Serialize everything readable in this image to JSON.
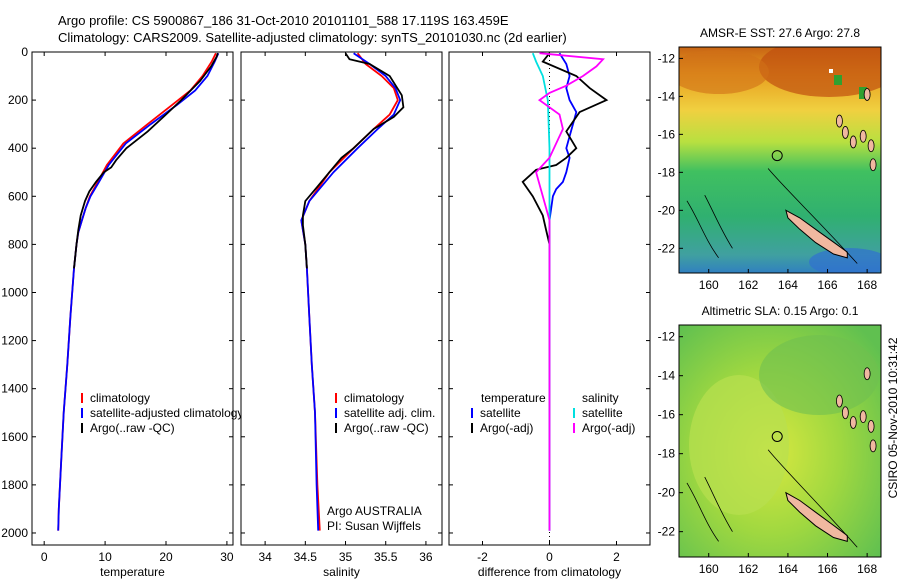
{
  "header": {
    "title_line1": "Argo profile: CS 5900867_186 31-Oct-2010 20101101_588 17.119S 163.459E",
    "title_line2": "Climatology: CARS2009. Satellite-adjusted climatology: synTS_20101030.nc (2d earlier)",
    "credit": "CSIRO 05-Nov-2010 10:31:42"
  },
  "colors": {
    "climatology": "#ff0000",
    "satellite": "#0000ff",
    "argo": "#000000",
    "salinity_satellite": "#00e0e0",
    "salinity_argo": "#ff00ff",
    "land": "#f0b8a0"
  },
  "chart_data": [
    {
      "id": "temperature",
      "type": "line",
      "xlabel": "temperature",
      "ylabel": "",
      "xlim": [
        -2,
        31
      ],
      "ylim": [
        2050,
        0
      ],
      "xticks": [
        0,
        10,
        20,
        30
      ],
      "yticks": [
        0,
        200,
        400,
        600,
        800,
        1000,
        1200,
        1400,
        1600,
        1800,
        2000
      ],
      "series": [
        {
          "name": "climatology",
          "color": "#ff0000",
          "x": [
            28.2,
            27.5,
            26,
            24,
            21,
            17,
            13,
            10.3,
            8.8,
            7.5,
            6.8,
            6.2,
            5.6,
            5.3,
            4.9,
            4.3,
            3.8,
            3.2,
            2.8,
            2.4,
            2.3
          ],
          "y": [
            5,
            40,
            100,
            160,
            220,
            300,
            380,
            470,
            540,
            600,
            650,
            700,
            750,
            800,
            900,
            1100,
            1300,
            1500,
            1700,
            1900,
            1990
          ]
        },
        {
          "name": "satellite-adjusted climatology",
          "color": "#0000ff",
          "x": [
            28.6,
            28,
            26.8,
            24.8,
            21.8,
            17.5,
            13.4,
            10.6,
            9,
            7.6,
            6.8,
            6.2,
            5.6,
            5.3,
            4.9,
            4.3,
            3.8,
            3.2,
            2.8,
            2.4,
            2.3
          ],
          "y": [
            5,
            40,
            100,
            160,
            220,
            300,
            380,
            470,
            540,
            600,
            650,
            700,
            750,
            800,
            900,
            1100,
            1300,
            1500,
            1700,
            1900,
            1990
          ]
        },
        {
          "name": "Argo(..raw -QC)",
          "color": "#000000",
          "x": [
            28.5,
            28.3,
            27.4,
            25.6,
            22.5,
            20,
            17,
            13.5,
            11.8,
            11,
            9.8,
            8.5,
            7.4,
            6.7,
            6,
            5.6,
            5.3,
            4.9
          ],
          "y": [
            5,
            20,
            60,
            120,
            200,
            260,
            330,
            400,
            450,
            480,
            500,
            540,
            580,
            620,
            680,
            740,
            800,
            900
          ]
        }
      ],
      "legend": [
        "climatology",
        "satellite-adjusted climatology",
        "Argo(..raw -QC)"
      ],
      "legend_position": "lower-right"
    },
    {
      "id": "salinity",
      "type": "line",
      "xlabel": "salinity",
      "ylabel": "",
      "xlim": [
        33.7,
        36.2
      ],
      "ylim": [
        2050,
        0
      ],
      "xticks": [
        34,
        34.5,
        35,
        35.5,
        36
      ],
      "series": [
        {
          "name": "climatology",
          "color": "#ff0000",
          "x": [
            35.15,
            35.25,
            35.45,
            35.6,
            35.65,
            35.55,
            35.35,
            35.1,
            34.8,
            34.55,
            34.45,
            34.5,
            34.52,
            34.55,
            34.58,
            34.62,
            34.65,
            34.68
          ],
          "y": [
            5,
            50,
            100,
            150,
            200,
            260,
            320,
            400,
            500,
            620,
            700,
            800,
            900,
            1100,
            1300,
            1500,
            1800,
            1990
          ]
        },
        {
          "name": "satellite adj. clim.",
          "color": "#0000ff",
          "x": [
            35.1,
            35.3,
            35.5,
            35.62,
            35.68,
            35.6,
            35.4,
            35.15,
            34.85,
            34.55,
            34.45,
            34.5,
            34.52,
            34.55,
            34.58,
            34.62,
            34.64,
            34.66
          ],
          "y": [
            5,
            50,
            100,
            150,
            200,
            260,
            320,
            400,
            500,
            620,
            700,
            800,
            900,
            1100,
            1300,
            1500,
            1800,
            1990
          ]
        },
        {
          "name": "Argo(..raw -QC)",
          "color": "#000000",
          "x": [
            35,
            35.05,
            35.3,
            35.55,
            35.7,
            35.72,
            35.6,
            35.35,
            35.1,
            34.95,
            34.8,
            34.65,
            34.5,
            34.47,
            34.47,
            34.5,
            34.52
          ],
          "y": [
            5,
            30,
            50,
            100,
            180,
            230,
            270,
            320,
            400,
            440,
            500,
            560,
            620,
            680,
            720,
            800,
            900
          ]
        }
      ],
      "legend": [
        "climatology",
        "satellite adj. clim.",
        "Argo(..raw -QC)"
      ],
      "legend_position": "lower-right",
      "annotation": [
        "Argo AUSTRALIA",
        "PI: Susan Wijffels"
      ]
    },
    {
      "id": "difference",
      "type": "line",
      "xlabel": "difference from climatology",
      "ylabel": "",
      "xlim": [
        -3,
        3
      ],
      "ylim": [
        2050,
        0
      ],
      "xticks": [
        -2,
        0,
        2
      ],
      "zero_line": true,
      "series": [
        {
          "name": "temperature satellite",
          "color": "#0000ff",
          "x": [
            0.3,
            0.5,
            0.6,
            0.5,
            0.6,
            0.8,
            0.7,
            0.6,
            0.5,
            0.6,
            0.5,
            0.4,
            0.2,
            0.1,
            0.05,
            0,
            0
          ],
          "y": [
            5,
            50,
            100,
            150,
            200,
            250,
            300,
            350,
            400,
            440,
            500,
            540,
            570,
            600,
            650,
            700,
            1990
          ]
        },
        {
          "name": "temperature Argo(-adj)",
          "color": "#000000",
          "x": [
            0,
            -0.2,
            0.8,
            1.2,
            1.7,
            0.9,
            0.5,
            0.8,
            0.5,
            0.2,
            -0.4,
            -0.8,
            -0.5,
            -0.2,
            -0.1,
            0
          ],
          "y": [
            5,
            40,
            100,
            150,
            200,
            250,
            330,
            400,
            440,
            470,
            490,
            540,
            600,
            680,
            740,
            800
          ]
        },
        {
          "name": "salinity satellite",
          "color": "#00e0e0",
          "x": [
            -0.5,
            -0.4,
            -0.2,
            -0.05,
            0,
            0,
            0
          ],
          "y": [
            5,
            40,
            100,
            200,
            400,
            800,
            1990
          ]
        },
        {
          "name": "salinity Argo(-adj)",
          "color": "#ff00ff",
          "x": [
            -0.3,
            1.6,
            1.4,
            1.0,
            0.5,
            0,
            -0.3,
            0.3,
            0.4,
            0.2,
            0,
            -0.4,
            -0.2,
            0,
            0
          ],
          "y": [
            5,
            30,
            60,
            100,
            140,
            170,
            200,
            260,
            320,
            380,
            440,
            500,
            600,
            700,
            1990
          ]
        }
      ],
      "legend_headers": [
        "temperature",
        "salinity"
      ],
      "legend": [
        "satellite",
        "Argo(-adj)",
        "satellite",
        "Argo(-adj)"
      ],
      "legend_position": "lower"
    },
    {
      "id": "sst_map",
      "type": "heatmap",
      "title": "AMSR-E SST: 27.6 Argo: 27.8",
      "xlim": [
        158.5,
        168.7
      ],
      "ylim": [
        -23.3,
        -11.4
      ],
      "xticks": [
        160,
        162,
        164,
        166,
        168
      ],
      "yticks": [
        -12,
        -14,
        -16,
        -18,
        -20,
        -22
      ],
      "argo_position": [
        163.459,
        -17.119
      ]
    },
    {
      "id": "sla_map",
      "type": "heatmap",
      "title": "Altimetric SLA: 0.15 Argo: 0.1",
      "xlim": [
        158.5,
        168.7
      ],
      "ylim": [
        -23.3,
        -11.4
      ],
      "xticks": [
        160,
        162,
        164,
        166,
        168
      ],
      "yticks": [
        -12,
        -14,
        -16,
        -18,
        -20,
        -22
      ],
      "argo_position": [
        163.459,
        -17.119
      ]
    }
  ]
}
